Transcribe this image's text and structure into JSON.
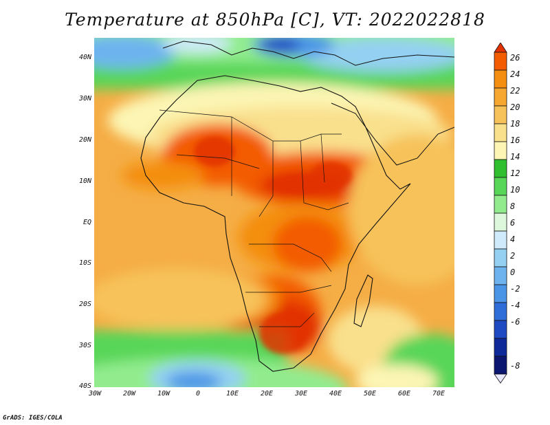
{
  "title": "Temperature at 850hPa [C], VT: 2022022818",
  "credit": "GrADS: IGES/COLA",
  "map": {
    "projection": "latitude-longitude",
    "lon_range": [
      -30,
      75
    ],
    "lat_range": [
      -40,
      45
    ],
    "lat_labels": [
      "40N",
      "30N",
      "20N",
      "10N",
      "EQ",
      "10S",
      "20S",
      "30S",
      "40S"
    ],
    "lon_labels": [
      "30W",
      "20W",
      "10W",
      "0",
      "10E",
      "20E",
      "30E",
      "40E",
      "50E",
      "60E",
      "70E"
    ],
    "field": "temperature",
    "level": "850hPa",
    "units": "C"
  },
  "colorbar": {
    "labels": [
      "26",
      "24",
      "22",
      "20",
      "18",
      "16",
      "14",
      "12",
      "10",
      "8",
      "6",
      "4",
      "2",
      "0",
      "-2",
      "-4",
      "-6",
      "-8"
    ],
    "colors": [
      "#e23200",
      "#f35c00",
      "#f48e10",
      "#f5a730",
      "#f7c25a",
      "#f9e08d",
      "#fcf5b4",
      "#2fbf2f",
      "#58d658",
      "#92ec8e",
      "#dcf7dc",
      "#cfeafa",
      "#94d0f2",
      "#6db4ee",
      "#4a95e6",
      "#2f6dd9",
      "#1f4bc2",
      "#0d2a98",
      "#0a1670",
      "#e8e8ff"
    ]
  }
}
